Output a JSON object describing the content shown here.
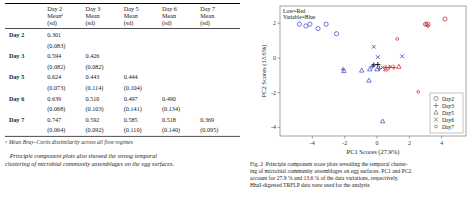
{
  "chart_data": [
    {
      "type": "table",
      "columns": [
        null,
        "Day 2\nMeanᵃ\n(sd)",
        "Day 3\nMean\n(sd)",
        "Day 5\nMean\n(sd)",
        "Day 6\nMean\n(sd)",
        "Day 7\nMean\n(sd)"
      ],
      "rows": [
        [
          "Day 2",
          "0.301",
          null,
          null,
          null,
          null
        ],
        [
          null,
          "(0.083)",
          null,
          null,
          null,
          null
        ],
        [
          "Day 3",
          "0.594",
          "0.426",
          null,
          null,
          null
        ],
        [
          null,
          "(0.082)",
          "(0.082)",
          null,
          null,
          null
        ],
        [
          "Day 5",
          "0.624",
          "0.443",
          "0.444",
          null,
          null
        ],
        [
          null,
          "(0.073)",
          "(0.114)",
          "(0.104)",
          null,
          null
        ],
        [
          "Day 6",
          "0.639",
          "0.510",
          "0.497",
          "0.490",
          null
        ],
        [
          null,
          "(0.068)",
          "(0.103)",
          "(0.141)",
          "(0.134)",
          null
        ],
        [
          "Day 7",
          "0.747",
          "0.592",
          "0.585",
          "0.518",
          "0.369"
        ],
        [
          null,
          "(0.064)",
          "(0.092)",
          "(0.110)",
          "(0.140)",
          "(0.095)"
        ]
      ],
      "annotations": [
        "ᵃ Mean Bray–Curtis dissimilarity across all flow regimes",
        "   Principle component plots also showed the strong temporal\nclustering of microbial community assemblages on the egg surfaces."
      ]
    },
    {
      "type": "scatter",
      "x_label": "PC1 Scores (27.9%)",
      "y_label": "PC2 Scores (13.6%)",
      "xlim": [
        -6,
        5.5
      ],
      "ylim": [
        -4.5,
        3.0
      ],
      "xticks": [
        -4,
        -2,
        0,
        2,
        4
      ],
      "yticks": [
        -4,
        -2,
        0,
        2
      ],
      "grid": false,
      "legend": "lower right",
      "annotations": [
        "Low=Red\nVariable=Blue",
        "Fig. 2  Principle component score plots revealing the temporal cluster-\ning of microbial community assemblages on egg surfaces. PC1 and PC2\naccount for 27.9 % and 13.6 % of the data variations, respectively.\nHhaI-digested TRFLP data were used for the analysis"
      ],
      "series": [
        {
          "name": "Day2",
          "marker": "circle",
          "x": [
            -4.8,
            -4.4,
            -4.15,
            -3.65,
            -3.15,
            -2.5,
            3.0,
            3.15,
            4.2
          ],
          "values": [
            1.95,
            1.85,
            1.95,
            1.7,
            1.95,
            1.4,
            1.95,
            1.95,
            2.25
          ],
          "colors": [
            "#5555cc",
            "#5555cc",
            "#5555cc",
            "#5555cc",
            "#5555cc",
            "#5555cc",
            "#cc3333",
            "#cc3333",
            "#cc3333"
          ]
        },
        {
          "name": "Day3",
          "marker": "plus",
          "x": [
            -2.1,
            -0.3,
            0.15,
            0.55,
            0.75,
            1.05,
            -0.2,
            0.05
          ],
          "values": [
            -0.65,
            -0.5,
            -0.6,
            -0.55,
            -0.55,
            -0.55,
            -0.4,
            -0.38
          ],
          "colors": [
            "#5555cc",
            "#5555cc",
            "#5555cc",
            "#cc3333",
            "#cc3333",
            "#cc3333",
            "#000000",
            "#000000"
          ]
        },
        {
          "name": "Day5",
          "marker": "triangle",
          "x": [
            -2.05,
            -0.95,
            -0.45,
            0.0,
            0.55,
            1.35,
            -0.5,
            0.35
          ],
          "values": [
            -0.75,
            -0.72,
            -0.65,
            -0.65,
            -0.65,
            -0.5,
            -1.3,
            -3.65
          ],
          "colors": [
            "#5555cc",
            "#5555cc",
            "#5555cc",
            "#5555cc",
            "#cc3333",
            "#cc3333",
            "#5555cc",
            "#5555cc"
          ]
        },
        {
          "name": "Day6",
          "marker": "x",
          "x": [
            0.05,
            1.55,
            -0.2,
            0.35,
            0.85
          ],
          "values": [
            0.05,
            0.1,
            0.65,
            -0.55,
            -0.5
          ],
          "colors": [
            "#5555cc",
            "#5555cc",
            "#5555cc",
            "#cc3333",
            "#cc3333"
          ]
        },
        {
          "name": "Day7",
          "marker": "small-circle",
          "x": [
            3.05,
            1.25,
            3.15,
            2.55
          ],
          "values": [
            1.95,
            1.1,
            1.85,
            -1.95
          ],
          "colors": [
            "#5555cc",
            "#cc3333",
            "#cc3333",
            "#cc3333"
          ]
        }
      ]
    }
  ]
}
